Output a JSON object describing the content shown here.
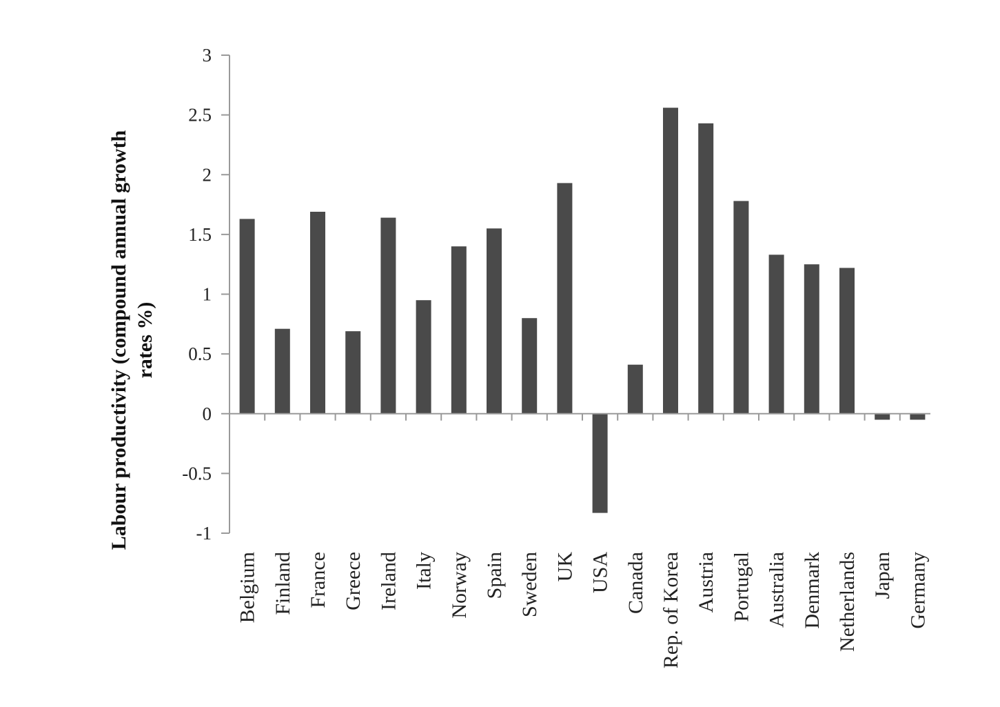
{
  "chart_data": {
    "type": "bar",
    "title": "",
    "xlabel": "",
    "ylabel_lines": [
      "Labour productivity (compound annual growth",
      "rates %)"
    ],
    "categories": [
      "Belgium",
      "Finland",
      "France",
      "Greece",
      "Ireland",
      "Italy",
      "Norway",
      "Spain",
      "Sweden",
      "UK",
      "USA",
      "Canada",
      "Rep. of Korea",
      "Austria",
      "Portugal",
      "Australia",
      "Denmark",
      "Netherlands",
      "Japan",
      "Germany"
    ],
    "values": [
      1.63,
      0.71,
      1.69,
      0.69,
      1.64,
      0.95,
      1.4,
      1.55,
      0.8,
      1.93,
      -0.83,
      0.41,
      2.56,
      2.43,
      1.78,
      1.33,
      1.25,
      1.22,
      -0.05,
      -0.05
    ],
    "yticks": [
      "3",
      "2.5",
      "2",
      "1.5",
      "1",
      "0.5",
      "0",
      "-0.5",
      "-1"
    ],
    "ylim": [
      -1,
      3
    ],
    "grid": false,
    "legend": "none",
    "bar_color": "#4a4a4a"
  }
}
